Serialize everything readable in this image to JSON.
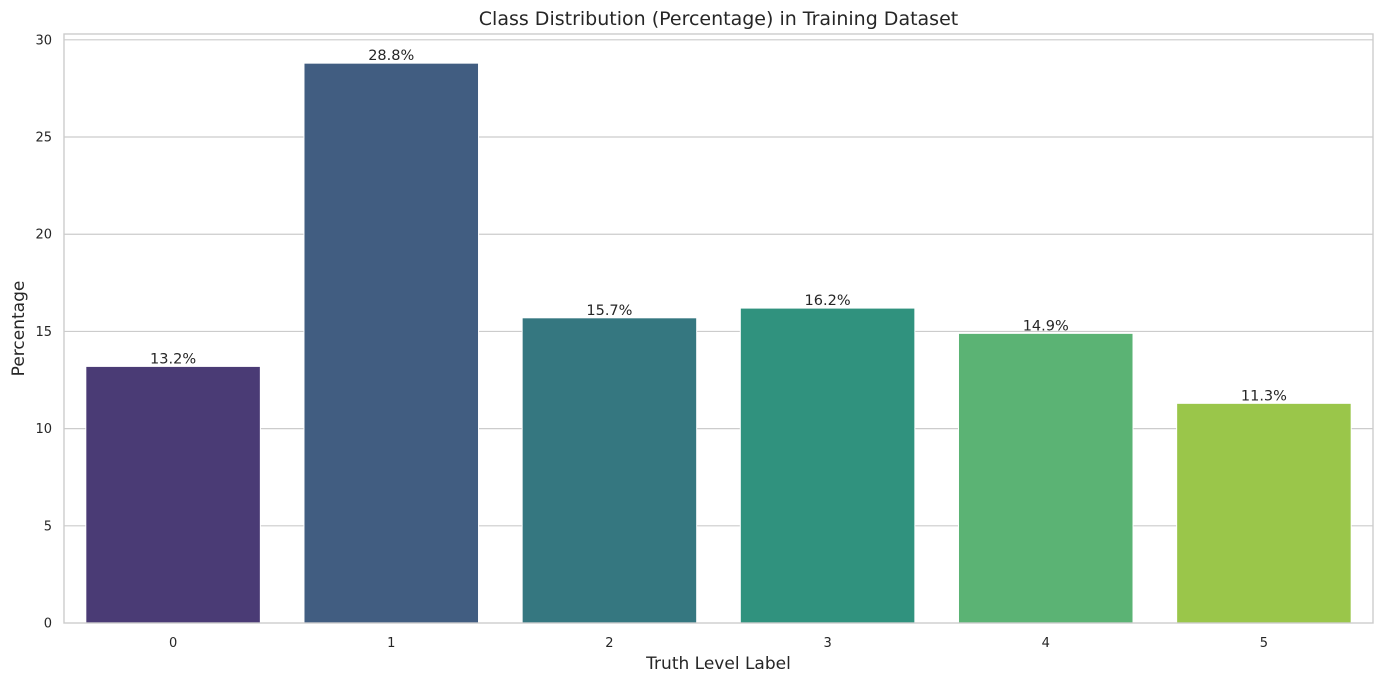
{
  "chart_data": {
    "type": "bar",
    "title": "Class Distribution (Percentage) in Training Dataset",
    "xlabel": "Truth Level Label",
    "ylabel": "Percentage",
    "categories": [
      "0",
      "1",
      "2",
      "3",
      "4",
      "5"
    ],
    "values": [
      13.2,
      28.8,
      15.7,
      16.2,
      14.9,
      11.3
    ],
    "data_labels": [
      "13.2%",
      "28.8%",
      "15.7%",
      "16.2%",
      "14.9%",
      "11.3%"
    ],
    "colors": [
      "#4a3b75",
      "#415d81",
      "#357780",
      "#30927e",
      "#5bb374",
      "#9ac64a"
    ],
    "yticks": [
      0,
      5,
      10,
      15,
      20,
      25,
      30
    ],
    "ylim": [
      0,
      30.3
    ],
    "grid": "horizontal"
  }
}
